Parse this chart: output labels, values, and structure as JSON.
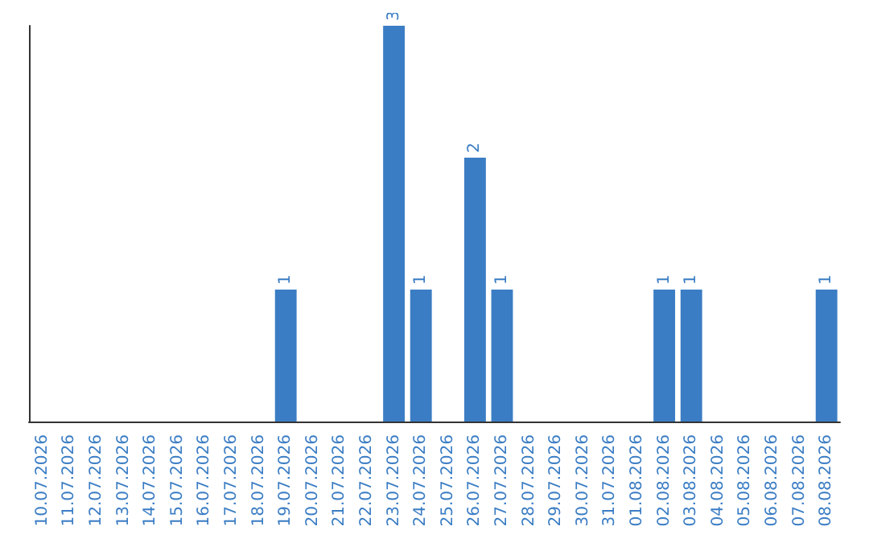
{
  "chart_data": {
    "type": "bar",
    "categories": [
      "10.07.2026",
      "11.07.2026",
      "12.07.2026",
      "13.07.2026",
      "14.07.2026",
      "15.07.2026",
      "16.07.2026",
      "17.07.2026",
      "18.07.2026",
      "19.07.2026",
      "20.07.2026",
      "21.07.2026",
      "22.07.2026",
      "23.07.2026",
      "24.07.2026",
      "25.07.2026",
      "26.07.2026",
      "27.07.2026",
      "28.07.2026",
      "29.07.2026",
      "30.07.2026",
      "31.07.2026",
      "01.08.2026",
      "02.08.2026",
      "03.08.2026",
      "04.08.2026",
      "05.08.2026",
      "06.08.2026",
      "07.08.2026",
      "08.08.2026"
    ],
    "values": [
      0,
      0,
      0,
      0,
      0,
      0,
      0,
      0,
      0,
      1,
      0,
      0,
      0,
      3,
      1,
      0,
      2,
      1,
      0,
      0,
      0,
      0,
      0,
      1,
      1,
      0,
      0,
      0,
      0,
      1
    ],
    "value_labels": [
      null,
      null,
      null,
      null,
      null,
      null,
      null,
      null,
      null,
      "1",
      null,
      null,
      null,
      "3",
      "1",
      null,
      "2",
      "1",
      null,
      null,
      null,
      null,
      null,
      "1",
      "1",
      null,
      null,
      null,
      null,
      "1"
    ],
    "color": "#3b7dc4",
    "tick_labels": "x"
  }
}
